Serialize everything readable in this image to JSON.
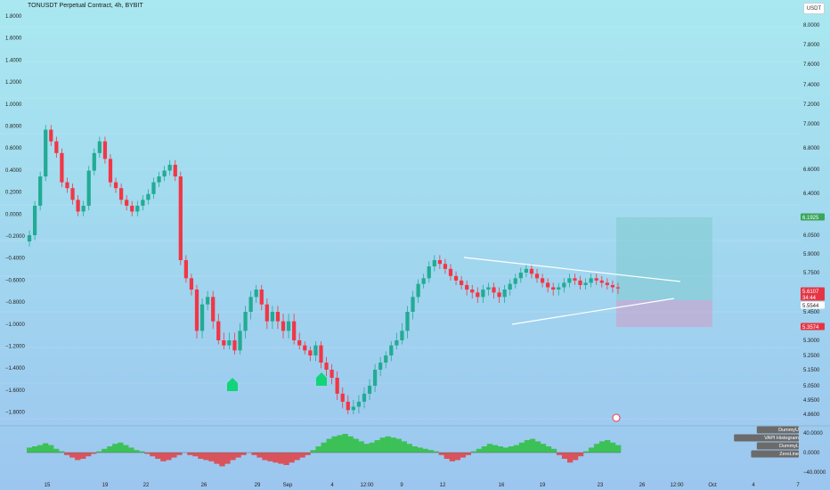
{
  "header": {
    "symbol_title": "TONUSDT Perpetual Contract, 4h, BYBIT",
    "currency_button": "USDT"
  },
  "colors": {
    "up": "#22ab94",
    "down": "#f23645",
    "osc_up": "#3cc157",
    "osc_down": "#d9535c",
    "pattern_line": "#ffffff",
    "profit_zone": "rgba(120,200,200,0.45)",
    "loss_zone": "rgba(214,150,196,0.5)",
    "arrow_marker": "#12d47a"
  },
  "chart_data": [
    {
      "type": "candlestick",
      "title": "TONUSDT Perpetual Contract, 4h, BYBIT",
      "interval": "4h",
      "right_axis_ticks": [
        "8.0000",
        "7.8000",
        "7.6000",
        "7.4000",
        "7.2000",
        "7.0000",
        "6.8000",
        "6.6000",
        "6.4000",
        "6.2000",
        "6.0500",
        "5.9000",
        "5.7500",
        "5.6000",
        "5.4500",
        "5.3000",
        "5.2500",
        "5.1500",
        "5.0500",
        "4.9500",
        "4.8600",
        "4.7750"
      ],
      "left_axis_ticks": [
        "1.8000",
        "1.6000",
        "1.4000",
        "1.2000",
        "1.0000",
        "0.8000",
        "0.6000",
        "0.4000",
        "0.2000",
        "0.0000",
        "−0.2000",
        "−0.4000",
        "−0.6000",
        "−0.8000",
        "−1.0000",
        "−1.2000",
        "−1.4000",
        "−1.6000",
        "−1.8000"
      ],
      "x_tick_labels": [
        "15",
        "19",
        "22",
        "26",
        "29",
        "Sep",
        "4",
        "12:00",
        "9",
        "12",
        "16",
        "19",
        "23",
        "26",
        "12:00",
        "Oct",
        "4",
        "7"
      ],
      "price_labels": [
        {
          "text": "6.1925",
          "kind": "target"
        },
        {
          "text": "5.6107",
          "kind": "last"
        },
        {
          "text": "34:44",
          "kind": "countdown"
        },
        {
          "text": "5.5544",
          "kind": "entry"
        },
        {
          "text": "5.3574",
          "kind": "stop"
        }
      ],
      "approx_closes": [
        6.05,
        6.3,
        6.55,
        6.95,
        6.85,
        6.75,
        6.5,
        6.45,
        6.35,
        6.25,
        6.3,
        6.6,
        6.75,
        6.85,
        6.7,
        6.5,
        6.45,
        6.35,
        6.3,
        6.25,
        6.3,
        6.35,
        6.4,
        6.5,
        6.55,
        6.6,
        6.65,
        6.55,
        5.85,
        5.7,
        5.6,
        5.35,
        5.5,
        5.55,
        5.4,
        5.3,
        5.25,
        5.3,
        5.2,
        5.35,
        5.45,
        5.55,
        5.6,
        5.5,
        5.4,
        5.45,
        5.4,
        5.35,
        5.4,
        5.3,
        5.25,
        5.2,
        5.15,
        5.25,
        5.1,
        5.05,
        5.0,
        4.9,
        4.85,
        4.8,
        4.82,
        4.85,
        4.9,
        4.95,
        5.05,
        5.1,
        5.15,
        5.25,
        5.3,
        5.35,
        5.45,
        5.55,
        5.65,
        5.7,
        5.8,
        5.85,
        5.82,
        5.78,
        5.72,
        5.68,
        5.64,
        5.6,
        5.58,
        5.55,
        5.6,
        5.62,
        5.58,
        5.55,
        5.6,
        5.65,
        5.7,
        5.75,
        5.78,
        5.74,
        5.7,
        5.66,
        5.62,
        5.6,
        5.62,
        5.66,
        5.7,
        5.68,
        5.64,
        5.66,
        5.7,
        5.68,
        5.66,
        5.64,
        5.62,
        5.61
      ],
      "markers": [
        "arrow-up",
        "arrow-up"
      ]
    },
    {
      "type": "bar",
      "title": "",
      "legend": [
        "DummyU",
        "VAPI Histogram",
        "DummyL",
        "ZeroLine"
      ],
      "y_tick_labels": [
        "40.0000",
        "0.0000",
        "−40.0000"
      ],
      "ylim": [
        -40,
        40
      ],
      "approx_values": [
        8,
        10,
        12,
        15,
        12,
        6,
        2,
        -4,
        -8,
        -12,
        -10,
        -6,
        -2,
        2,
        6,
        10,
        14,
        16,
        12,
        8,
        4,
        2,
        -2,
        -6,
        -10,
        -14,
        -12,
        -8,
        -4,
        0,
        -4,
        -6,
        -10,
        -12,
        -14,
        -18,
        -22,
        -18,
        -12,
        -8,
        -4,
        0,
        -4,
        -8,
        -12,
        -14,
        -16,
        -18,
        -20,
        -16,
        -12,
        -8,
        -4,
        4,
        10,
        16,
        22,
        26,
        28,
        30,
        26,
        22,
        18,
        14,
        16,
        20,
        24,
        26,
        24,
        22,
        18,
        14,
        10,
        8,
        6,
        4,
        2,
        -4,
        -10,
        -14,
        -12,
        -8,
        -4,
        2,
        6,
        10,
        14,
        12,
        10,
        8,
        10,
        12,
        16,
        20,
        22,
        18,
        14,
        10,
        6,
        -4,
        -10,
        -16,
        -12,
        -6,
        2,
        8,
        14,
        18,
        20,
        16,
        12
      ]
    }
  ]
}
